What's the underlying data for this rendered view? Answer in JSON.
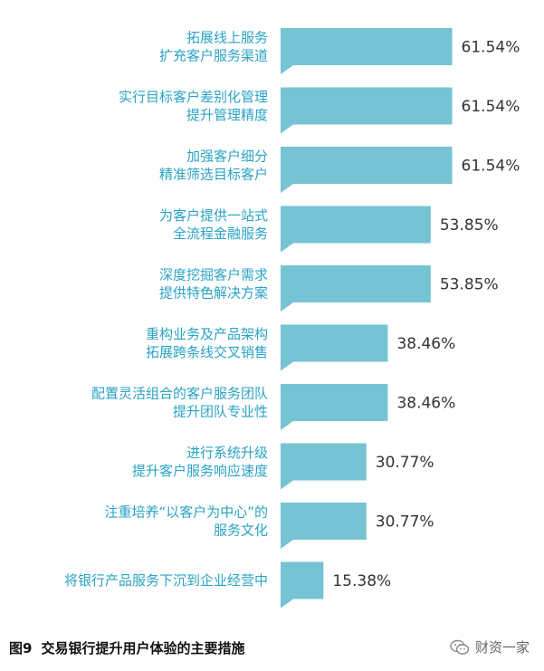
{
  "chart_data": {
    "type": "bar",
    "orientation": "horizontal",
    "categories": [
      [
        "拓展线上服务",
        "扩充客户服务渠道"
      ],
      [
        "实行目标客户差别化管理",
        "提升管理精度"
      ],
      [
        "加强客户细分",
        "精准筛选目标客户"
      ],
      [
        "为客户提供一站式",
        "全流程金融服务"
      ],
      [
        "深度挖掘客户需求",
        "提供特色解决方案"
      ],
      [
        "重构业务及产品架构",
        "拓展跨条线交叉销售"
      ],
      [
        "配置灵活组合的客户服务团队",
        "提升团队专业性"
      ],
      [
        "进行系统升级",
        "提升客户服务响应速度"
      ],
      [
        "注重培养“以客户为中心”的",
        "服务文化"
      ],
      [
        "将银行产品服务下沉到企业经营中"
      ]
    ],
    "values": [
      61.54,
      61.54,
      61.54,
      53.85,
      53.85,
      38.46,
      38.46,
      30.77,
      30.77,
      15.38
    ],
    "value_labels": [
      "61.54%",
      "61.54%",
      "61.54%",
      "53.85%",
      "53.85%",
      "38.46%",
      "38.46%",
      "30.77%",
      "30.77%",
      "15.38%"
    ],
    "xlim": [
      0,
      100
    ],
    "bar_color": "#76c3d3",
    "label_color": "#2aa3c4",
    "grid": false
  },
  "caption": {
    "figure_number": "图9",
    "text": "交易银行提升用户体验的主要措施"
  },
  "watermark": {
    "text": "财资一家",
    "icon": "wechat-icon"
  }
}
